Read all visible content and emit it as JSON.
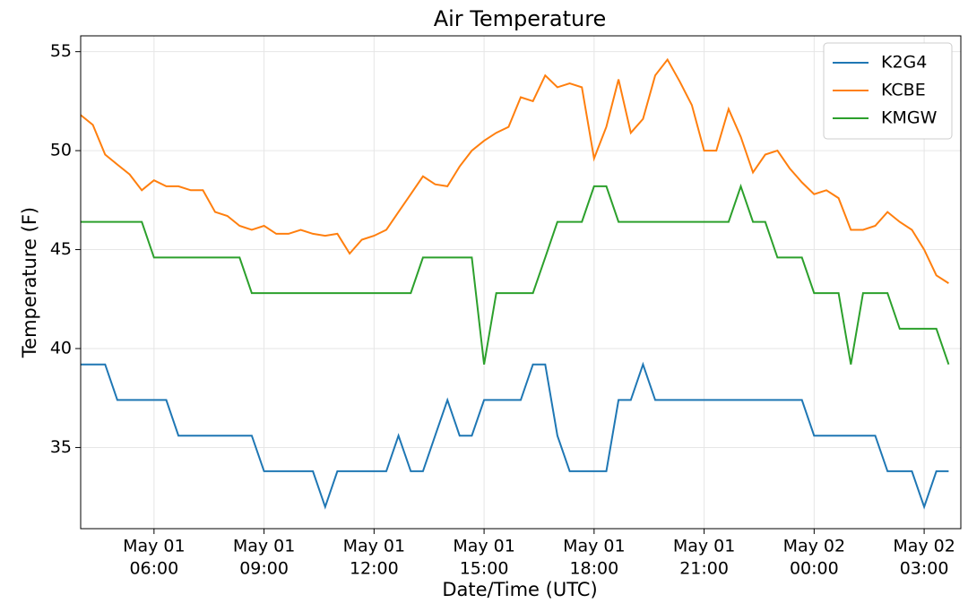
{
  "chart_data": {
    "type": "line",
    "title": "Air Temperature",
    "xlabel": "Date/Time (UTC)",
    "ylabel": "Temperature (F)",
    "x": [
      "May 01 04:00",
      "May 01 04:20",
      "May 01 04:40",
      "May 01 05:00",
      "May 01 05:20",
      "May 01 05:40",
      "May 01 06:00",
      "May 01 06:20",
      "May 01 06:40",
      "May 01 07:00",
      "May 01 07:20",
      "May 01 07:40",
      "May 01 08:00",
      "May 01 08:20",
      "May 01 08:40",
      "May 01 09:00",
      "May 01 09:20",
      "May 01 09:40",
      "May 01 10:00",
      "May 01 10:20",
      "May 01 10:40",
      "May 01 11:00",
      "May 01 11:20",
      "May 01 11:40",
      "May 01 12:00",
      "May 01 12:20",
      "May 01 12:40",
      "May 01 13:00",
      "May 01 13:20",
      "May 01 13:40",
      "May 01 14:00",
      "May 01 14:20",
      "May 01 14:40",
      "May 01 15:00",
      "May 01 15:20",
      "May 01 15:40",
      "May 01 16:00",
      "May 01 16:20",
      "May 01 16:40",
      "May 01 17:00",
      "May 01 17:20",
      "May 01 17:40",
      "May 01 18:00",
      "May 01 18:20",
      "May 01 18:40",
      "May 01 19:00",
      "May 01 19:20",
      "May 01 19:40",
      "May 01 20:00",
      "May 01 20:20",
      "May 01 20:40",
      "May 01 21:00",
      "May 01 21:20",
      "May 01 21:40",
      "May 01 22:00",
      "May 01 22:20",
      "May 01 22:40",
      "May 01 23:00",
      "May 01 23:20",
      "May 01 23:40",
      "May 02 00:00",
      "May 02 00:20",
      "May 02 00:40",
      "May 02 01:00",
      "May 02 01:20",
      "May 02 01:40",
      "May 02 02:00",
      "May 02 02:20",
      "May 02 02:40",
      "May 02 03:00",
      "May 02 03:20",
      "May 02 03:40"
    ],
    "series": [
      {
        "name": "K2G4",
        "color": "#1f77b4",
        "values": [
          39.2,
          39.2,
          39.2,
          37.4,
          37.4,
          37.4,
          37.4,
          37.4,
          35.6,
          35.6,
          35.6,
          35.6,
          35.6,
          35.6,
          35.6,
          33.8,
          33.8,
          33.8,
          33.8,
          33.8,
          32.0,
          33.8,
          33.8,
          33.8,
          33.8,
          33.8,
          35.6,
          33.8,
          33.8,
          35.6,
          37.4,
          35.6,
          35.6,
          37.4,
          37.4,
          37.4,
          37.4,
          39.2,
          39.2,
          35.6,
          33.8,
          33.8,
          33.8,
          33.8,
          37.4,
          37.4,
          39.2,
          37.4,
          37.4,
          37.4,
          37.4,
          37.4,
          37.4,
          37.4,
          37.4,
          37.4,
          37.4,
          37.4,
          37.4,
          37.4,
          35.6,
          35.6,
          35.6,
          35.6,
          35.6,
          35.6,
          33.8,
          33.8,
          33.8,
          32.0,
          33.8,
          33.8
        ]
      },
      {
        "name": "KCBE",
        "color": "#ff7f0e",
        "values": [
          51.8,
          51.3,
          49.8,
          49.3,
          48.8,
          48.0,
          48.5,
          48.2,
          48.2,
          48.0,
          48.0,
          46.9,
          46.7,
          46.2,
          46.0,
          46.2,
          45.8,
          45.8,
          46.0,
          45.8,
          45.7,
          45.8,
          44.8,
          45.5,
          45.7,
          46.0,
          46.9,
          47.8,
          48.7,
          48.3,
          48.2,
          49.2,
          50.0,
          50.5,
          50.9,
          51.2,
          52.7,
          52.5,
          53.8,
          53.2,
          53.4,
          53.2,
          49.6,
          51.2,
          53.6,
          50.9,
          51.6,
          53.8,
          54.6,
          53.5,
          52.3,
          50.0,
          50.0,
          52.1,
          50.7,
          48.9,
          49.8,
          50.0,
          49.1,
          48.4,
          47.8,
          48.0,
          47.6,
          46.0,
          46.0,
          46.2,
          46.9,
          46.4,
          46.0,
          45.0,
          43.7,
          43.3
        ]
      },
      {
        "name": "KMGW",
        "color": "#2ca02c",
        "values": [
          46.4,
          46.4,
          46.4,
          46.4,
          46.4,
          46.4,
          44.6,
          44.6,
          44.6,
          44.6,
          44.6,
          44.6,
          44.6,
          44.6,
          42.8,
          42.8,
          42.8,
          42.8,
          42.8,
          42.8,
          42.8,
          42.8,
          42.8,
          42.8,
          42.8,
          42.8,
          42.8,
          42.8,
          44.6,
          44.6,
          44.6,
          44.6,
          44.6,
          39.2,
          42.8,
          42.8,
          42.8,
          42.8,
          44.6,
          46.4,
          46.4,
          46.4,
          48.2,
          48.2,
          46.4,
          46.4,
          46.4,
          46.4,
          46.4,
          46.4,
          46.4,
          46.4,
          46.4,
          46.4,
          48.2,
          46.4,
          46.4,
          44.6,
          44.6,
          44.6,
          42.8,
          42.8,
          42.8,
          39.2,
          42.8,
          42.8,
          42.8,
          41.0,
          41.0,
          41.0,
          41.0,
          39.2
        ]
      }
    ],
    "xlim": [
      "May 01 04:00",
      "May 02 04:00"
    ],
    "xticks": [
      {
        "value": "May 01 06:00",
        "label": [
          "May 01",
          "06:00"
        ]
      },
      {
        "value": "May 01 09:00",
        "label": [
          "May 01",
          "09:00"
        ]
      },
      {
        "value": "May 01 12:00",
        "label": [
          "May 01",
          "12:00"
        ]
      },
      {
        "value": "May 01 15:00",
        "label": [
          "May 01",
          "15:00"
        ]
      },
      {
        "value": "May 01 18:00",
        "label": [
          "May 01",
          "18:00"
        ]
      },
      {
        "value": "May 01 21:00",
        "label": [
          "May 01",
          "21:00"
        ]
      },
      {
        "value": "May 02 00:00",
        "label": [
          "May 02",
          "00:00"
        ]
      },
      {
        "value": "May 02 03:00",
        "label": [
          "May 02",
          "03:00"
        ]
      }
    ],
    "ylim": [
      30.9,
      55.8
    ],
    "yticks": [
      35,
      40,
      45,
      50,
      55
    ],
    "grid": true,
    "legend": "upper right"
  }
}
